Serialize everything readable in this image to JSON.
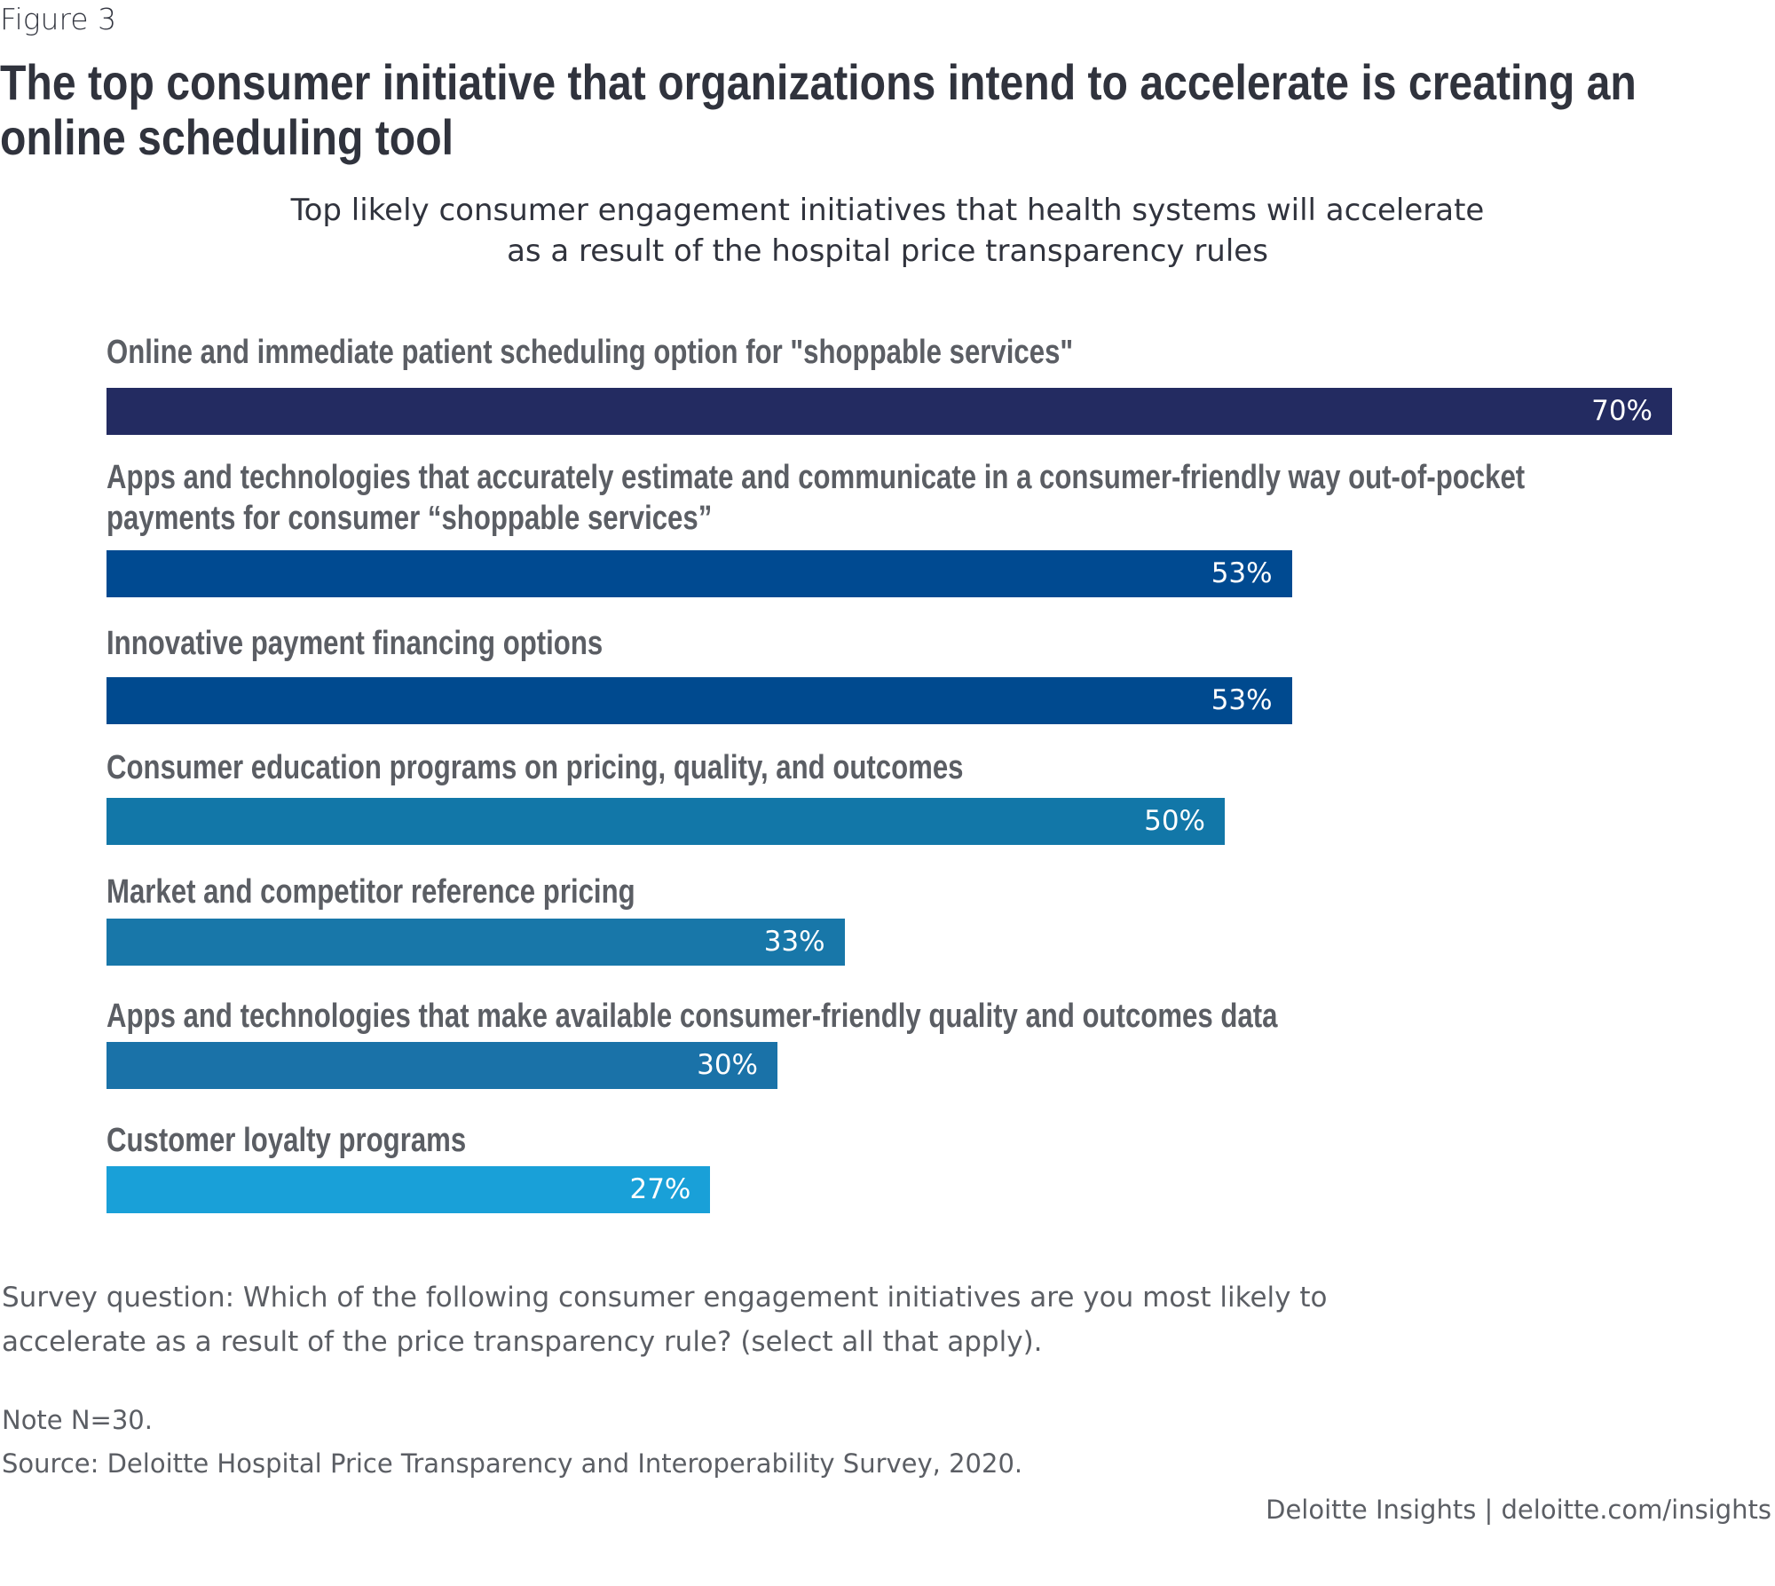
{
  "figure_label": "Figure 3",
  "title_lines": [
    "The top consumer initiative that organizations intend to accelerate is creating an",
    "online scheduling tool"
  ],
  "subtitle_lines": [
    "Top likely consumer engagement initiatives that health systems will accelerate",
    "as a result of the hospital price transparency rules"
  ],
  "chart_data": {
    "type": "bar",
    "orientation": "horizontal",
    "title": "Top likely consumer engagement initiatives that health systems will accelerate as a result of the hospital price transparency rules",
    "xlabel": "",
    "ylabel": "",
    "xlim": [
      0,
      100
    ],
    "unit": "%",
    "grid": false,
    "categories": [
      "Online and immediate patient scheduling option for \"shoppable services\"",
      "Apps and technologies that accurately estimate and communicate in a consumer-friendly way out-of-pocket payments for consumer “shoppable services”",
      "Innovative payment financing options",
      "Consumer education programs on pricing, quality, and outcomes",
      "Market and competitor reference pricing",
      "Apps and technologies that make available consumer-friendly quality and outcomes data",
      "Customer loyalty programs"
    ],
    "label_lines": [
      [
        "Online and immediate patient scheduling option for \"shoppable services\""
      ],
      [
        "Apps and technologies that accurately estimate and communicate in a consumer-friendly way out-of-pocket",
        "payments for consumer “shoppable services”"
      ],
      [
        "Innovative payment financing options"
      ],
      [
        "Consumer education programs on pricing, quality, and outcomes"
      ],
      [
        "Market and competitor reference pricing"
      ],
      [
        "Apps and technologies that make available consumer-friendly quality and outcomes data"
      ],
      [
        "Customer loyalty programs"
      ]
    ],
    "values": [
      70,
      53,
      53,
      50,
      33,
      30,
      27
    ],
    "value_labels": [
      "70%",
      "53%",
      "53%",
      "50%",
      "33%",
      "30%",
      "27%"
    ],
    "colors": [
      "#232b61",
      "#004a91",
      "#004a8f",
      "#1277a8",
      "#1877a9",
      "#1a72a8",
      "#19a0d8"
    ]
  },
  "footer": {
    "survey_lines": [
      "Survey question: Which of the following consumer engagement initiatives are you most likely to",
      "accelerate as a result of the price transparency rule? (select all that apply)."
    ],
    "note": "Note N=30.",
    "source": "Source: Deloitte Hospital Price Transparency and Interoperability Survey, 2020.",
    "credit": "Deloitte Insights | deloitte.com/insights"
  }
}
